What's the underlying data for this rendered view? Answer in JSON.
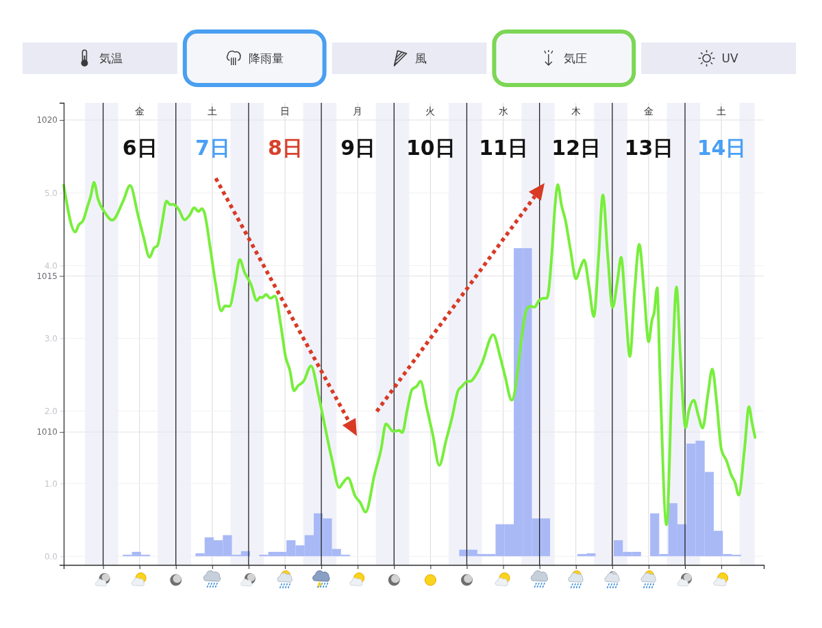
{
  "chart_data": {
    "type": "line",
    "xlim": [
      4.958,
      14.583
    ],
    "xticks": [
      {
        "value": 6,
        "label": "6日"
      },
      {
        "value": 7,
        "label": "7日"
      },
      {
        "value": 8,
        "label": "8日"
      },
      {
        "value": 9,
        "label": "9日"
      },
      {
        "value": 10,
        "label": "10日"
      },
      {
        "value": 11,
        "label": "11日"
      },
      {
        "value": 12,
        "label": "12日"
      },
      {
        "value": 13,
        "label": "13日"
      },
      {
        "value": 14,
        "label": "14日"
      }
    ],
    "ylim": [
      1005.74,
      1020.55
    ],
    "yticks": [
      1010,
      1015,
      1020
    ],
    "y2lim": [
      -0.12,
      6.24
    ],
    "y2ticks": [
      {
        "value": 0,
        "label": "0.0"
      },
      {
        "value": 1,
        "label": "1.0"
      },
      {
        "value": 2,
        "label": "2.0"
      },
      {
        "value": 3,
        "label": "3.0"
      },
      {
        "value": 4,
        "label": "4.0"
      },
      {
        "value": 5,
        "label": "5.0"
      }
    ],
    "grid": true,
    "series": [
      {
        "type": "bar",
        "axis": "y2",
        "color": "#a9b9f6",
        "x": [
          5.833,
          5.958,
          6.083,
          6.833,
          6.958,
          7.083,
          7.208,
          7.333,
          7.458,
          7.708,
          7.833,
          7.958,
          8.083,
          8.208,
          8.333,
          8.458,
          8.583,
          8.708,
          8.833,
          10.458,
          10.583,
          10.708,
          10.833,
          10.958,
          11.083,
          11.208,
          11.333,
          11.458,
          11.583,
          12.083,
          12.208,
          12.583,
          12.708,
          12.833,
          13.083,
          13.208,
          13.333,
          13.458,
          13.583,
          13.708,
          13.833,
          13.958,
          14.083,
          14.208
        ],
        "values": [
          0.02,
          0.06,
          0.02,
          0.04,
          0.26,
          0.22,
          0.29,
          0.02,
          0.07,
          0.02,
          0.06,
          0.06,
          0.22,
          0.15,
          0.29,
          0.59,
          0.52,
          0.1,
          0.02,
          0.09,
          0.09,
          0.03,
          0.03,
          0.44,
          0.44,
          4.24,
          4.24,
          0.52,
          0.52,
          0.03,
          0.04,
          0.22,
          0.06,
          0.06,
          0.59,
          0.03,
          0.73,
          0.44,
          1.55,
          1.59,
          1.16,
          0.35,
          0.03,
          0.02
        ]
      },
      {
        "color": "#78ee3c",
        "x": [
          4.958,
          5.117,
          5.163,
          5.225,
          5.288,
          5.329,
          5.375,
          5.429,
          5.525,
          5.625,
          5.775,
          5.871,
          5.979,
          6.058,
          6.138,
          6.2,
          6.246,
          6.308,
          6.371,
          6.421,
          6.467,
          6.546,
          6.617,
          6.692,
          6.75,
          6.813,
          6.858,
          6.892,
          6.971,
          7.046,
          7.125,
          7.175,
          7.238,
          7.313,
          7.379,
          7.442,
          7.533,
          7.613,
          7.658,
          7.692,
          7.738,
          7.8,
          7.863,
          7.942,
          8.008,
          8.067,
          8.125,
          8.175,
          8.258,
          8.358,
          8.463,
          8.546,
          8.646,
          8.746,
          8.796,
          8.867,
          8.967,
          9.033,
          9.108,
          9.233,
          9.321,
          9.388,
          9.488,
          9.571,
          9.613,
          9.679,
          9.746,
          9.813,
          9.863,
          9.95,
          10.033,
          10.121,
          10.217,
          10.3,
          10.379,
          10.433,
          10.504,
          10.554,
          10.621,
          10.704,
          10.863,
          10.958,
          11.025,
          11.117,
          11.329,
          11.379,
          11.429,
          11.492,
          11.554,
          11.6,
          11.617,
          11.667,
          11.713,
          11.75,
          11.804,
          11.854,
          11.929,
          12.0,
          12.058,
          12.113,
          12.183,
          12.246,
          12.313,
          12.371,
          12.438,
          12.504,
          12.575,
          12.621,
          12.683,
          12.742,
          12.808,
          12.871,
          12.938,
          13.0,
          13.046,
          13.075,
          13.117,
          13.154,
          13.246,
          13.325,
          13.383,
          13.438,
          13.508,
          13.55,
          13.621,
          13.683,
          13.742,
          13.817,
          13.875,
          13.933,
          14.0,
          14.071,
          14.138,
          14.188,
          14.238,
          14.321,
          14.379,
          14.421,
          14.463
        ],
        "values": [
          1017.91,
          1016.41,
          1016.63,
          1016.78,
          1017.25,
          1017.55,
          1018.0,
          1017.47,
          1017.03,
          1016.79,
          1017.4,
          1017.9,
          1016.96,
          1016.23,
          1015.6,
          1015.9,
          1015.97,
          1016.67,
          1017.4,
          1017.29,
          1017.29,
          1017.11,
          1016.8,
          1016.96,
          1017.19,
          1017.07,
          1017.16,
          1017.03,
          1015.93,
          1014.76,
          1013.88,
          1014.04,
          1014.03,
          1014.76,
          1015.53,
          1015.13,
          1014.73,
          1014.21,
          1014.32,
          1014.31,
          1014.41,
          1014.29,
          1014.36,
          1013.44,
          1012.42,
          1011.98,
          1011.32,
          1011.47,
          1011.63,
          1012.12,
          1011.16,
          1010.22,
          1009.12,
          1008.22,
          1008.37,
          1008.53,
          1007.94,
          1007.75,
          1007.43,
          1008.65,
          1009.44,
          1010.26,
          1010.02,
          1010.05,
          1009.98,
          1010.69,
          1011.36,
          1011.47,
          1011.63,
          1010.77,
          1009.91,
          1008.93,
          1009.75,
          1010.49,
          1011.32,
          1011.46,
          1011.62,
          1011.63,
          1011.81,
          1012.18,
          1013.12,
          1012.42,
          1011.8,
          1011.02,
          1013.96,
          1014.03,
          1014.0,
          1014.21,
          1014.29,
          1014.29,
          1014.4,
          1015.64,
          1017.25,
          1017.93,
          1017.25,
          1016.81,
          1015.79,
          1014.91,
          1015.24,
          1015.51,
          1014.62,
          1013.7,
          1015.64,
          1017.6,
          1015.64,
          1013.99,
          1014.91,
          1015.6,
          1013.96,
          1012.42,
          1014.55,
          1016.01,
          1014.47,
          1012.89,
          1013.59,
          1013.81,
          1014.62,
          1011.98,
          1007.03,
          1011.98,
          1014.65,
          1012.35,
          1010.14,
          1010.65,
          1011.02,
          1010.53,
          1010.13,
          1011.24,
          1012.02,
          1011.01,
          1009.44,
          1009.08,
          1008.61,
          1008.38,
          1007.98,
          1009.52,
          1010.81,
          1010.3,
          1009.83
        ]
      }
    ],
    "bands": [
      {
        "axis": "x",
        "from": 5.25,
        "to": 5.708,
        "color": "#f1f2f9"
      },
      {
        "axis": "x",
        "from": 6.25,
        "to": 6.708,
        "color": "#f1f2f9"
      },
      {
        "axis": "x",
        "from": 7.25,
        "to": 7.708,
        "color": "#f1f2f9"
      },
      {
        "axis": "x",
        "from": 8.25,
        "to": 8.708,
        "color": "#f1f2f9"
      },
      {
        "axis": "x",
        "from": 9.25,
        "to": 9.708,
        "color": "#f1f2f9"
      },
      {
        "axis": "x",
        "from": 10.25,
        "to": 10.708,
        "color": "#f1f2f9"
      },
      {
        "axis": "x",
        "from": 11.25,
        "to": 11.708,
        "color": "#f1f2f9"
      },
      {
        "axis": "x",
        "from": 12.25,
        "to": 12.708,
        "color": "#f1f2f9"
      },
      {
        "axis": "x",
        "from": 13.25,
        "to": 13.708,
        "color": "#f1f2f9"
      },
      {
        "axis": "x",
        "from": 14.25,
        "to": 14.458,
        "color": "#f1f2f9"
      }
    ],
    "ref_lines": [
      {
        "axis": "x",
        "value": 5.5,
        "color": "#222222"
      },
      {
        "axis": "x",
        "value": 6.5,
        "color": "#222222"
      },
      {
        "axis": "x",
        "value": 7.5,
        "color": "#222222"
      },
      {
        "axis": "x",
        "value": 8.5,
        "color": "#222222"
      },
      {
        "axis": "x",
        "value": 9.5,
        "color": "#222222"
      },
      {
        "axis": "x",
        "value": 10.5,
        "color": "#222222"
      },
      {
        "axis": "x",
        "value": 11.5,
        "color": "#222222"
      },
      {
        "axis": "x",
        "value": 12.5,
        "color": "#222222"
      },
      {
        "axis": "x",
        "value": 13.5,
        "color": "#222222"
      }
    ],
    "annotations": [
      "気温",
      "降雨量",
      "風",
      "気圧",
      "UV",
      "金",
      "土",
      "日",
      "月",
      "火",
      "水",
      "木",
      "金",
      "土"
    ]
  }
}
